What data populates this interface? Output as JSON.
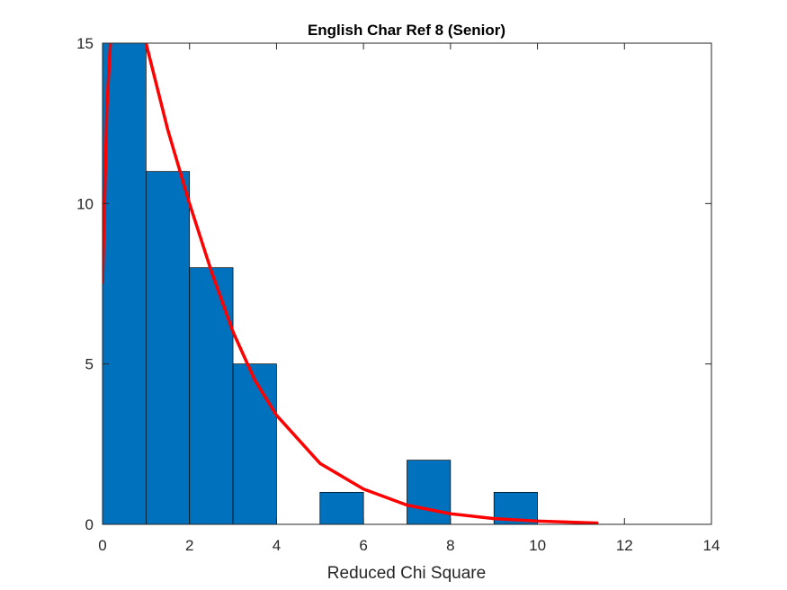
{
  "chart_data": {
    "type": "histogram",
    "title": "English Char Ref 8 (Senior)",
    "x_label": "Reduced Chi Square",
    "bins": [
      0,
      1,
      2,
      3,
      4,
      5,
      6,
      7,
      8,
      9,
      10
    ],
    "values": [
      15,
      11,
      8,
      5,
      0,
      1,
      0,
      2,
      0,
      1
    ],
    "color": "#0072bd",
    "fit": {
      "color": "#ff0000",
      "x": [
        0,
        0.1,
        0.2,
        0.5,
        1,
        1.5,
        2,
        2.5,
        3,
        3.5,
        4,
        5,
        6,
        7,
        8,
        9,
        10,
        11.4
      ],
      "y": [
        7.5,
        13,
        15.5,
        17.5,
        15,
        12.3,
        10,
        7.9,
        6,
        4.5,
        3.4,
        1.9,
        1.1,
        0.6,
        0.33,
        0.18,
        0.1,
        0.04
      ]
    },
    "xlim": [
      0,
      14
    ],
    "xticks": [
      0,
      2,
      4,
      6,
      8,
      10,
      12,
      14
    ],
    "ylim": [
      0,
      15
    ],
    "yticks": [
      0,
      5,
      10,
      15
    ]
  }
}
